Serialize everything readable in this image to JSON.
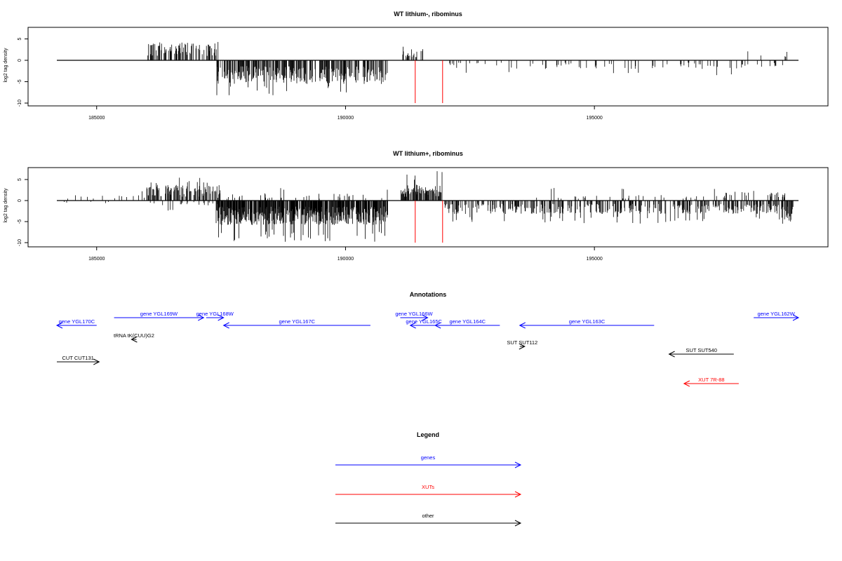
{
  "colors": {
    "gene": "#0000ff",
    "xut": "#ff0000",
    "other": "#000000",
    "marker": "#ff0000",
    "signal": "#000000"
  },
  "chart_data": [
    {
      "type": "bar",
      "title": "WT lithium-, ribominus",
      "ylabel": "log2 tag density",
      "xlim": [
        184200,
        199100
      ],
      "ylim": [
        -10,
        7
      ],
      "xticks": [
        185000,
        190000,
        195000
      ],
      "yticks": [
        5,
        0,
        -5,
        -10
      ],
      "markers": [
        191400,
        191950
      ],
      "segments": [
        {
          "start": 186000,
          "end": 187450,
          "sign": 1,
          "level": 2.9,
          "min": 0.5,
          "max": 4.6,
          "density": 0.32
        },
        {
          "start": 187400,
          "end": 190850,
          "sign": -1,
          "level": 3.8,
          "min": 1.0,
          "max": 8.5,
          "density": 0.5
        },
        {
          "start": 191150,
          "end": 191650,
          "sign": 1,
          "level": 1.8,
          "min": 0.5,
          "max": 4.0,
          "density": 0.3
        },
        {
          "start": 191950,
          "end": 198800,
          "sign": -1,
          "level": 1.4,
          "min": 0.3,
          "max": 3.8,
          "density": 0.09
        },
        {
          "start": 197800,
          "end": 199000,
          "sign": 1,
          "level": 1.5,
          "min": 0.4,
          "max": 3.5,
          "density": 0.04
        }
      ]
    },
    {
      "type": "bar",
      "title": "WT lithium+, ribominus",
      "ylabel": "log2 tag density",
      "xlim": [
        184200,
        199100
      ],
      "ylim": [
        -10,
        7
      ],
      "xticks": [
        185000,
        190000,
        195000
      ],
      "yticks": [
        5,
        0,
        -5,
        -10
      ],
      "markers": [
        191400,
        191950
      ],
      "segments": [
        {
          "start": 184200,
          "end": 186000,
          "sign": 1,
          "level": 1.0,
          "min": 0.3,
          "max": 2.5,
          "density": 0.05
        },
        {
          "start": 184200,
          "end": 186000,
          "sign": -1,
          "level": 0.7,
          "min": 0.2,
          "max": 1.8,
          "density": 0.03
        },
        {
          "start": 186000,
          "end": 187500,
          "sign": 1,
          "level": 2.6,
          "min": 0.5,
          "max": 5.8,
          "density": 0.45
        },
        {
          "start": 186000,
          "end": 187500,
          "sign": -1,
          "level": 0.8,
          "min": 0.3,
          "max": 2.5,
          "density": 0.07
        },
        {
          "start": 187400,
          "end": 190850,
          "sign": -1,
          "level": 4.0,
          "min": 0.8,
          "max": 9.8,
          "density": 0.75
        },
        {
          "start": 187400,
          "end": 190850,
          "sign": 1,
          "level": 1.2,
          "min": 0.3,
          "max": 3.0,
          "density": 0.07
        },
        {
          "start": 191100,
          "end": 191950,
          "sign": 1,
          "level": 2.6,
          "min": 0.5,
          "max": 7.0,
          "density": 0.55
        },
        {
          "start": 191950,
          "end": 198800,
          "sign": -1,
          "level": 2.2,
          "min": 0.3,
          "max": 5.5,
          "density": 0.35
        },
        {
          "start": 193500,
          "end": 199000,
          "sign": 1,
          "level": 0.9,
          "min": 0.3,
          "max": 3.0,
          "density": 0.05
        },
        {
          "start": 197600,
          "end": 199000,
          "sign": 1,
          "level": 1.5,
          "min": 0.4,
          "max": 3.2,
          "density": 0.12
        },
        {
          "start": 198800,
          "end": 199000,
          "sign": -1,
          "level": 3.5,
          "min": 1.0,
          "max": 6.5,
          "density": 0.6
        }
      ]
    }
  ],
  "annotations": {
    "title": "Annotations",
    "features": [
      {
        "label": "gene YGL170C",
        "start": 184200,
        "end": 185000,
        "strand": "-",
        "kind": "gene",
        "row": 1
      },
      {
        "label": "gene YGL169W",
        "start": 185350,
        "end": 187150,
        "strand": "+",
        "kind": "gene",
        "row": 0
      },
      {
        "label": "gene YGL168W",
        "start": 187200,
        "end": 187550,
        "strand": "+",
        "kind": "gene",
        "row": 0
      },
      {
        "label": "gene YGL167C",
        "start": 187550,
        "end": 190500,
        "strand": "-",
        "kind": "gene",
        "row": 1
      },
      {
        "label": "gene YGL166W",
        "start": 191100,
        "end": 191650,
        "strand": "+",
        "kind": "gene",
        "row": 0
      },
      {
        "label": "gene YGL165C",
        "start": 191300,
        "end": 191850,
        "strand": "-",
        "kind": "gene",
        "row": 1
      },
      {
        "label": "gene YGL164C",
        "start": 191800,
        "end": 193100,
        "strand": "-",
        "kind": "gene",
        "row": 1
      },
      {
        "label": "gene YGL163C",
        "start": 193500,
        "end": 196200,
        "strand": "-",
        "kind": "gene",
        "row": 1
      },
      {
        "label": "gene YGL162W",
        "start": 198200,
        "end": 199100,
        "strand": "+",
        "kind": "gene",
        "row": 0
      },
      {
        "label": "tRNA tK(CUU)G2",
        "start": 185700,
        "end": 185800,
        "strand": "-",
        "kind": "other",
        "row": 2
      },
      {
        "label": "SUT SUT112",
        "start": 193500,
        "end": 193600,
        "strand": "+",
        "kind": "other",
        "row": 3
      },
      {
        "label": "SUT SUT540",
        "start": 196500,
        "end": 197800,
        "strand": "-",
        "kind": "other",
        "row": 4
      },
      {
        "label": "CUT CUT131",
        "start": 184200,
        "end": 185050,
        "strand": "+",
        "kind": "other",
        "row": 5
      },
      {
        "label": "XUT 7R-88",
        "start": 196800,
        "end": 197900,
        "strand": "-",
        "kind": "xut",
        "row": 6
      }
    ]
  },
  "legend": {
    "title": "Legend",
    "items": [
      {
        "label": "genes",
        "kind": "gene"
      },
      {
        "label": "XUTs",
        "kind": "xut"
      },
      {
        "label": "other",
        "kind": "other"
      }
    ]
  }
}
